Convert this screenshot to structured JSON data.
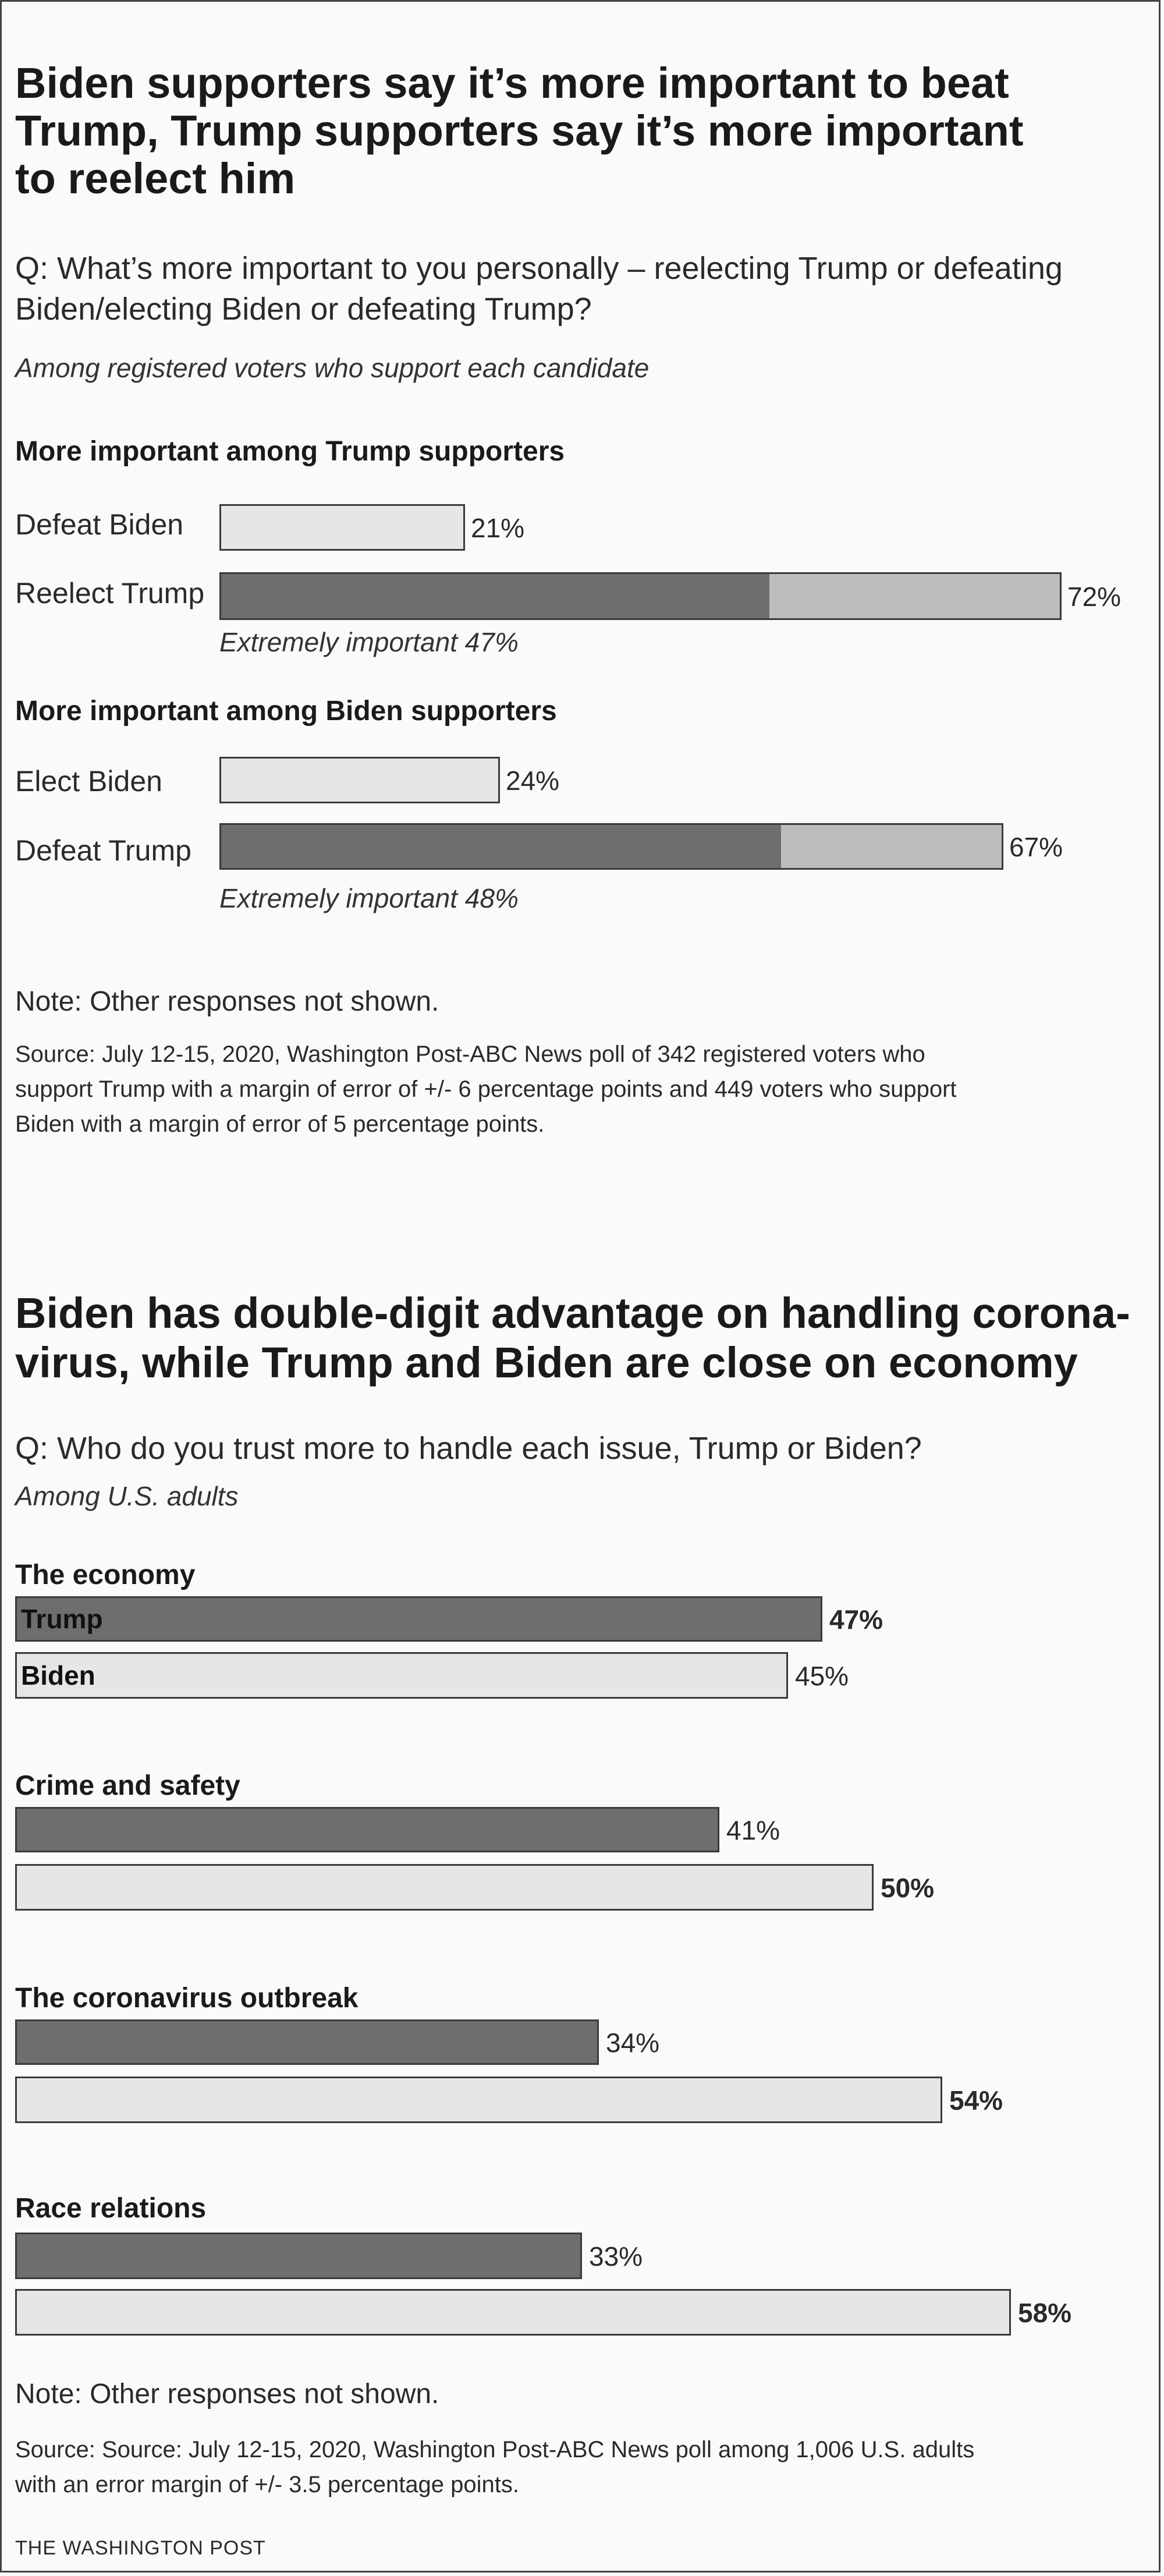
{
  "chart1": {
    "title_lines": [
      "Biden supporters say it’s more important to beat",
      "Trump, Trump supporters say it’s more important",
      "to reelect him"
    ],
    "question_lines": [
      "Q: What’s more important to you personally – reelecting Trump or defeating",
      "Biden/electing Biden or defeating Trump?"
    ],
    "subtitle": "Among registered voters who support each candidate",
    "note": "Note: Other responses not shown.",
    "source_lines": [
      "Source: July 12-15, 2020, Washington Post-ABC News poll of 342 registered voters who",
      "support Trump with a margin of error of +/- 6 percentage points and 449 voters who support",
      "Biden with a margin of error of 5 percentage points."
    ]
  },
  "chart2": {
    "title_lines": [
      "Biden has double-digit advantage on handling corona-",
      "virus, while Trump and Biden are close on economy"
    ],
    "question": "Q: Who do you trust more to handle each issue, Trump or Biden?",
    "subtitle": "Among U.S. adults",
    "note": "Note: Other responses not shown.",
    "source_lines": [
      "Source: Source: July 12-15, 2020, Washington Post-ABC News poll among 1,006 U.S. adults",
      "with an error margin of +/- 3.5 percentage points."
    ]
  },
  "footer": "THE WASHINGTON POST",
  "colors": {
    "dark": "#6e6e6e",
    "mid": "#bdbdbd",
    "light": "#e6e6e6",
    "outline": "#3a3a3a"
  },
  "chart_data": [
    {
      "type": "bar",
      "orientation": "horizontal",
      "groups": [
        {
          "heading": "More important among Trump supporters",
          "rows": [
            {
              "label": "Defeat Biden",
              "value": 21,
              "value_label": "21%"
            },
            {
              "label": "Reelect Trump",
              "value": 72,
              "value_label": "72%",
              "extremely_important": 47,
              "annotation": "Extremely important 47%"
            }
          ]
        },
        {
          "heading": "More important among Biden supporters",
          "rows": [
            {
              "label": "Elect Biden",
              "value": 24,
              "value_label": "24%"
            },
            {
              "label": "Defeat Trump",
              "value": 67,
              "value_label": "67%",
              "extremely_important": 48,
              "annotation": "Extremely important 48%"
            }
          ]
        }
      ],
      "xlim": [
        0,
        100
      ]
    },
    {
      "type": "bar",
      "orientation": "horizontal",
      "series": [
        {
          "name": "Trump",
          "values": [
            47,
            41,
            34,
            33
          ]
        },
        {
          "name": "Biden",
          "values": [
            45,
            50,
            54,
            58
          ]
        }
      ],
      "categories": [
        "The economy",
        "Crime and safety",
        "The coronavirus outbreak",
        "Race relations"
      ],
      "value_labels": {
        "Trump": [
          "47%",
          "41%",
          "34%",
          "33%"
        ],
        "Biden": [
          "45%",
          "50%",
          "54%",
          "58%"
        ]
      },
      "bold_leader": true,
      "xlim": [
        0,
        100
      ]
    }
  ]
}
